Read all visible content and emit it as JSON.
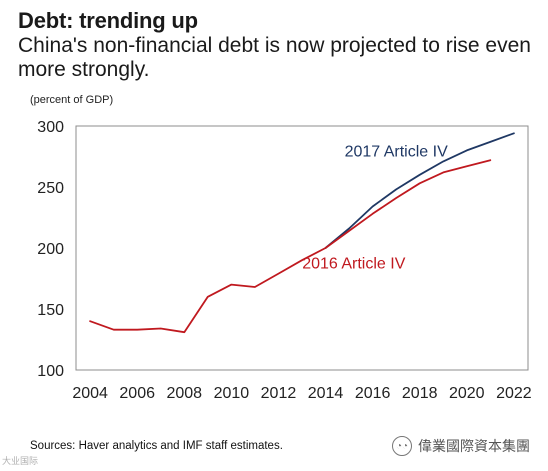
{
  "header": {
    "title": "Debt: trending up",
    "subtitle": "China's non-financial debt is now projected to rise even more strongly.",
    "unit_note": "(percent of GDP)"
  },
  "footer": {
    "source": "Sources: Haver analytics and IMF staff estimates.",
    "watermark_text": "偉業國際資本集團",
    "watermark_icon": "wechat-like-icon",
    "corner_text": "大业国际"
  },
  "chart_data": {
    "type": "line",
    "title": "",
    "xlabel": "",
    "ylabel": "",
    "xlim": [
      2003.4,
      2022.6
    ],
    "ylim": [
      100,
      300
    ],
    "x_ticks": [
      2004,
      2006,
      2008,
      2010,
      2012,
      2014,
      2016,
      2018,
      2020,
      2022
    ],
    "y_ticks": [
      100,
      150,
      200,
      250,
      300
    ],
    "grid": false,
    "series": [
      {
        "name": "2016 Article IV",
        "color": "#c0191f",
        "x": [
          2004,
          2005,
          2006,
          2007,
          2008,
          2009,
          2010,
          2011,
          2012,
          2013,
          2014,
          2015,
          2016,
          2017,
          2018,
          2019,
          2020,
          2021
        ],
        "values": [
          140,
          133,
          133,
          134,
          131,
          160,
          170,
          168,
          179,
          190,
          200,
          214,
          228,
          241,
          253,
          262,
          267,
          272
        ]
      },
      {
        "name": "2017 Article IV",
        "color": "#1f3864",
        "x": [
          2014,
          2015,
          2016,
          2017,
          2018,
          2019,
          2020,
          2021,
          2022
        ],
        "values": [
          200,
          216,
          234,
          248,
          260,
          271,
          280,
          287,
          294
        ]
      }
    ],
    "annotations": [
      {
        "text": "2017 Article IV",
        "series": 1,
        "x": 2017.0,
        "y": 275,
        "color": "#1f3864"
      },
      {
        "text": "2016 Article IV",
        "series": 0,
        "x": 2015.2,
        "y": 183,
        "color": "#c0191f"
      }
    ]
  }
}
